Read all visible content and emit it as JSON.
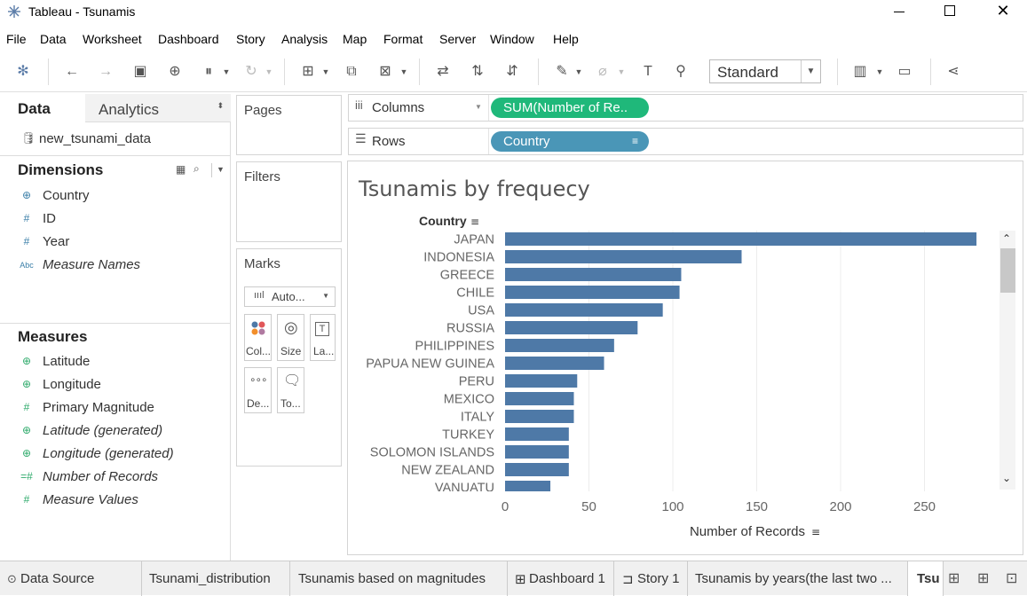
{
  "window": {
    "title": "Tableau - Tsunamis"
  },
  "menu": [
    "File",
    "Data",
    "Worksheet",
    "Dashboard",
    "Story",
    "Analysis",
    "Map",
    "Format",
    "Server",
    "Window",
    "Help"
  ],
  "toolbar": {
    "fit_select": "Standard"
  },
  "data_pane": {
    "tabs": [
      "Data",
      "Analytics"
    ],
    "datasource": "new_tsunami_data",
    "dimensions_header": "Dimensions",
    "dimensions": [
      {
        "label": "Country",
        "icon": "globe-icon",
        "italic": false
      },
      {
        "label": "ID",
        "icon": "hash-icon",
        "italic": false
      },
      {
        "label": "Year",
        "icon": "hash-icon",
        "italic": false
      },
      {
        "label": "Measure Names",
        "icon": "abc-icon",
        "italic": true
      }
    ],
    "measures_header": "Measures",
    "measures": [
      {
        "label": "Latitude",
        "icon": "globe-icon",
        "italic": false
      },
      {
        "label": "Longitude",
        "icon": "globe-icon",
        "italic": false
      },
      {
        "label": "Primary Magnitude",
        "icon": "hash-icon",
        "italic": false
      },
      {
        "label": "Latitude (generated)",
        "icon": "globe-icon",
        "italic": true
      },
      {
        "label": "Longitude (generated)",
        "icon": "globe-icon",
        "italic": true
      },
      {
        "label": "Number of Records",
        "icon": "hash-icon",
        "italic": true
      },
      {
        "label": "Measure Values",
        "icon": "hash-icon",
        "italic": true
      }
    ]
  },
  "cards": {
    "pages": "Pages",
    "filters": "Filters",
    "marks": "Marks",
    "mark_type": "Auto...",
    "mark_buttons": [
      "Col...",
      "Size",
      "La...",
      "De...",
      "To..."
    ]
  },
  "shelves": {
    "columns_label": "Columns",
    "columns_pill": "SUM(Number of Re..",
    "rows_label": "Rows",
    "rows_pill": "Country"
  },
  "colors": {
    "bar": "#4e79a7",
    "measure_pill": "#1fb87a",
    "dimension_pill": "#4a96b7"
  },
  "chart_data": {
    "type": "bar",
    "orientation": "horizontal",
    "title": "Tsunamis by frequecy",
    "ylabel": "Country",
    "xlabel": "Number of Records",
    "categories": [
      "JAPAN",
      "INDONESIA",
      "GREECE",
      "CHILE",
      "USA",
      "RUSSIA",
      "PHILIPPINES",
      "PAPUA NEW GUINEA",
      "PERU",
      "MEXICO",
      "ITALY",
      "TURKEY",
      "SOLOMON ISLANDS",
      "NEW ZEALAND",
      "VANUATU"
    ],
    "values": [
      281,
      141,
      105,
      104,
      94,
      79,
      65,
      59,
      43,
      41,
      41,
      38,
      38,
      38,
      27
    ],
    "xticks": [
      "0",
      "50",
      "100",
      "150",
      "200",
      "250"
    ],
    "xlim": [
      0,
      290
    ],
    "gridlines": true
  },
  "sheet_tabs": [
    "Data Source",
    "Tsunami_distribution",
    "Tsunamis based on magnitudes",
    "Dashboard 1",
    "Story 1",
    "Tsunamis by years(the last two ...",
    "Tsu"
  ]
}
